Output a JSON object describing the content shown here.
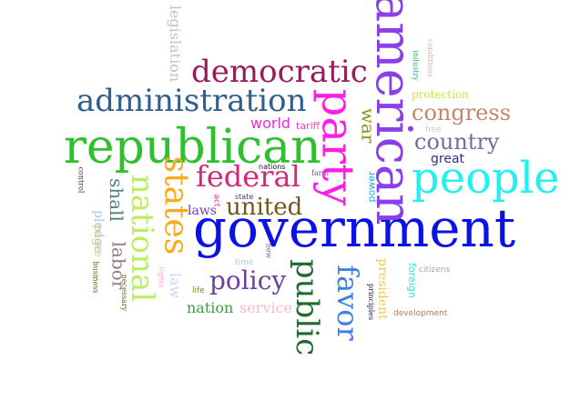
{
  "words": [
    {
      "text": "government",
      "color": "#0a12e6"
    },
    {
      "text": "republican",
      "color": "#2fbf2f"
    },
    {
      "text": "american",
      "color": "#8b3fe6"
    },
    {
      "text": "party",
      "color": "#ff1ee6"
    },
    {
      "text": "people",
      "color": "#24f0f0"
    },
    {
      "text": "administration",
      "color": "#2f5f8f"
    },
    {
      "text": "democratic",
      "color": "#9a1a5a"
    },
    {
      "text": "federal",
      "color": "#d6267a"
    },
    {
      "text": "states",
      "color": "#ffaa1a"
    },
    {
      "text": "national",
      "color": "#b8f060"
    },
    {
      "text": "united",
      "color": "#6b5a1a"
    },
    {
      "text": "public",
      "color": "#1f6b2f"
    },
    {
      "text": "favor",
      "color": "#3f7fe6"
    },
    {
      "text": "congress",
      "color": "#c8846a"
    },
    {
      "text": "country",
      "color": "#6f6f9f"
    },
    {
      "text": "policy",
      "color": "#6f3f9f"
    },
    {
      "text": "labor",
      "color": "#8f7f7f"
    },
    {
      "text": "shall",
      "color": "#4f7f7f"
    },
    {
      "text": "war",
      "color": "#8f8f1a"
    },
    {
      "text": "legislation",
      "color": "#b8c8b8"
    },
    {
      "text": "world",
      "color": "#e62fd6"
    },
    {
      "text": "nation",
      "color": "#3f9f3f"
    },
    {
      "text": "service",
      "color": "#ffb8c8"
    },
    {
      "text": "great",
      "color": "#2f2f8f"
    },
    {
      "text": "laws",
      "color": "#6f3fb8"
    },
    {
      "text": "pledge",
      "color": "#a8c8f8"
    },
    {
      "text": "peace",
      "color": "#f0c860"
    },
    {
      "text": "law",
      "color": "#c8d8f8"
    },
    {
      "text": "tariff",
      "color": "#f83fb8"
    },
    {
      "text": "president",
      "color": "#f0c860"
    },
    {
      "text": "foreign",
      "color": "#2fe6c8"
    },
    {
      "text": "protection",
      "color": "#c8e63f"
    },
    {
      "text": "power",
      "color": "#1fa8e6"
    },
    {
      "text": "nations",
      "color": "#1a1a1a"
    },
    {
      "text": "farm",
      "color": "#5a5a8a"
    },
    {
      "text": "state",
      "color": "#3a3a6a"
    },
    {
      "text": "act",
      "color": "#d82f8a"
    },
    {
      "text": "free",
      "color": "#c8c8c8"
    },
    {
      "text": "industry",
      "color": "#3f9f6f"
    },
    {
      "text": "conditions",
      "color": "#c8b8a8"
    },
    {
      "text": "citizens",
      "color": "#a89fb8"
    },
    {
      "text": "development",
      "color": "#b8785a"
    },
    {
      "text": "principles",
      "color": "#1a1a4a"
    },
    {
      "text": "control",
      "color": "#3a3a3a"
    },
    {
      "text": "business",
      "color": "#4a6a1a"
    },
    {
      "text": "necessary",
      "color": "#6a5a2a"
    },
    {
      "text": "rights",
      "color": "#f8a8c8"
    },
    {
      "text": "life",
      "color": "#7f8a2f"
    },
    {
      "text": "time",
      "color": "#a8c8e6"
    },
    {
      "text": "new",
      "color": "#6a6a8a"
    }
  ]
}
